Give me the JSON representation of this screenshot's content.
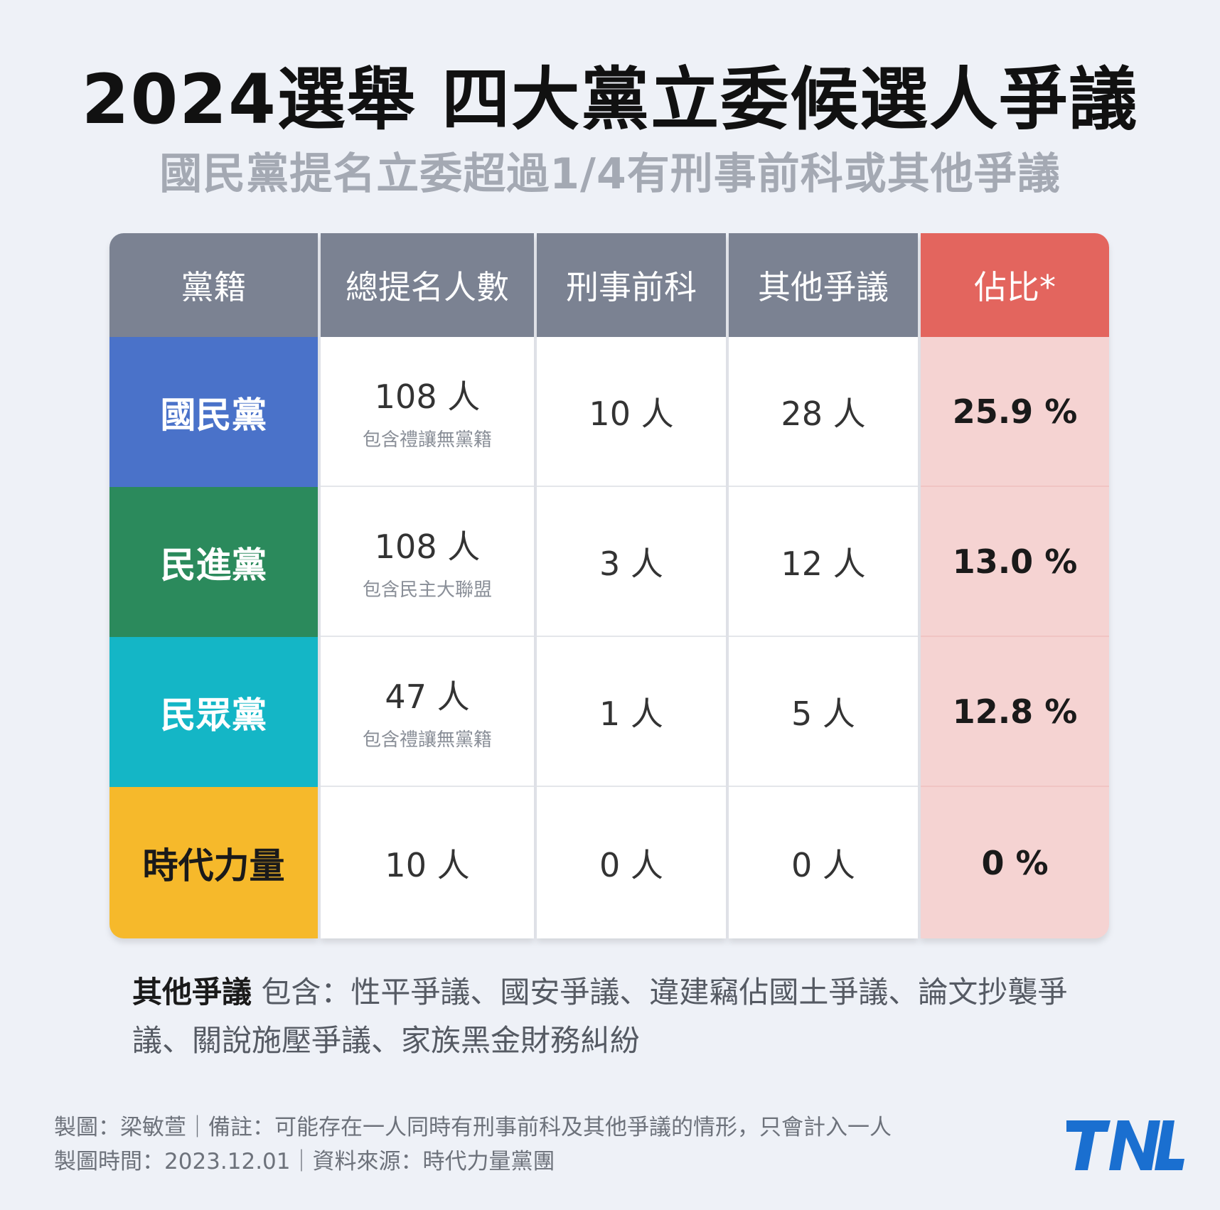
{
  "title": "2024選舉 四大黨立委候選人爭議",
  "subtitle": "國民黨提名立委超過1/4有刑事前科或其他爭議",
  "chart_data": {
    "type": "table",
    "columns": [
      "黨籍",
      "總提名人數",
      "刑事前科",
      "其他爭議",
      "佔比*"
    ],
    "rows": [
      {
        "party": "國民黨",
        "total": "108 人",
        "total_note": "包含禮讓無黨籍",
        "criminal": "10 人",
        "other": "28 人",
        "pct": "25.9 %",
        "pct_value": 25.9,
        "color": "#4a72c9"
      },
      {
        "party": "民進黨",
        "total": "108 人",
        "total_note": "包含民主大聯盟",
        "criminal": "3 人",
        "other": "12 人",
        "pct": "13.0 %",
        "pct_value": 13.0,
        "color": "#2b8a5c"
      },
      {
        "party": "民眾黨",
        "total": "47 人",
        "total_note": "包含禮讓無黨籍",
        "criminal": "1 人",
        "other": "5 人",
        "pct": "12.8 %",
        "pct_value": 12.8,
        "color": "#14b6c6"
      },
      {
        "party": "時代力量",
        "total": "10 人",
        "total_note": "",
        "criminal": "0 人",
        "other": "0 人",
        "pct": "0 %",
        "pct_value": 0,
        "color": "#f6b92b"
      }
    ],
    "header_color": "#7b8292",
    "pct_header_color": "#e3655e",
    "pct_cell_color": "#f5d3d2"
  },
  "other_note": {
    "label": "其他爭議",
    "text": " 包含：性平爭議、國安爭議、違建竊佔國土爭議、論文抄襲爭議、關說施壓爭議、家族黑金財務糾紛"
  },
  "footer": {
    "line1": "製圖：梁敏萱｜備註：可能存在一人同時有刑事前科及其他爭議的情形，只會計入一人",
    "line2": "製圖時間：2023.12.01｜資料來源：時代力量黨團"
  },
  "logo": {
    "text": "TNL",
    "color": "#1a6fd0"
  }
}
